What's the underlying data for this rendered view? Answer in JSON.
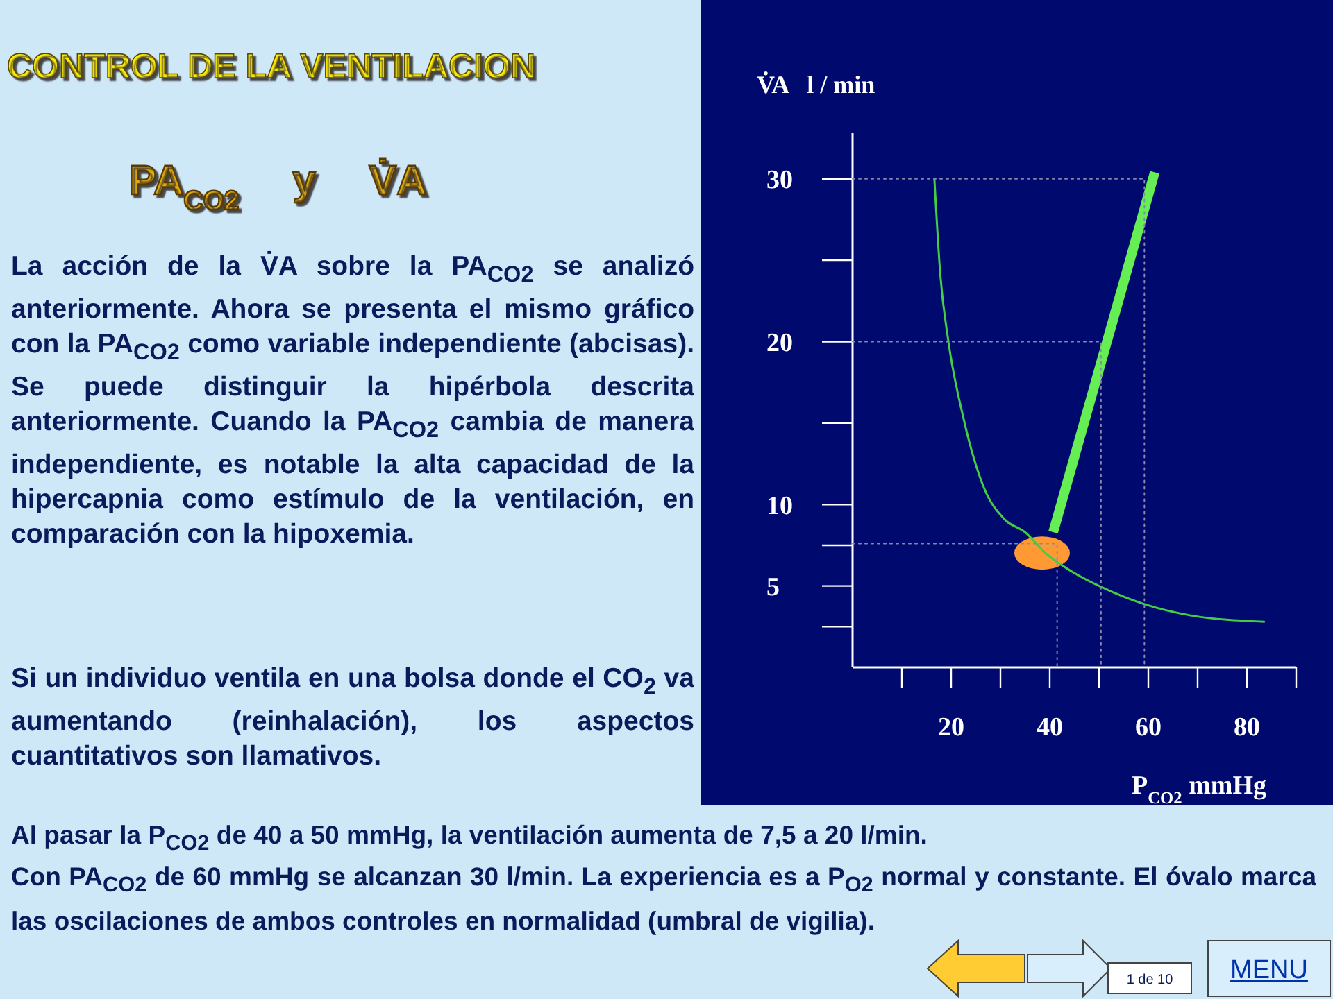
{
  "chart_data": {
    "type": "line",
    "title": "CONTROL DE LA VENTILACION",
    "subtitle": "PA$_{CO2}$ y V̇A",
    "xlabel": "P$_{CO2}$ mmHg",
    "ylabel": "V̇A   l / min",
    "xlim": [
      0,
      90
    ],
    "ylim": [
      0,
      32.8
    ],
    "xticks": [
      20,
      40,
      60,
      80
    ],
    "yticks": [
      5,
      10,
      20,
      30
    ],
    "grid": false,
    "marker": "none",
    "series": [
      {
        "color": "#44cc44",
        "line_style": "solid",
        "x": [
          16.6,
          17.8,
          19.4,
          22.5,
          26.7,
          30.8,
          35,
          39.2,
          44.4,
          50.7,
          59,
          68.4,
          83.5
        ],
        "values": [
          30,
          24.1,
          20.1,
          15.3,
          11,
          9.1,
          8.3,
          7,
          5.9,
          4.9,
          3.9,
          3.2,
          2.8
        ]
      },
      {
        "color": "#66ee55",
        "line_style": "solid",
        "x": [
          40.7,
          61.3
        ],
        "values": [
          8.3,
          30.4
        ]
      },
      {
        "color": "#8888aa",
        "line_style": "dotted",
        "x": [
          0,
          59.2,
          59.2
        ],
        "values": [
          30,
          30,
          0
        ]
      },
      {
        "color": "#8888aa",
        "line_style": "dotted",
        "x": [
          0,
          50.4,
          50.4
        ],
        "values": [
          20,
          20,
          0
        ]
      },
      {
        "color": "#8888aa",
        "line_style": "dotted",
        "x": [
          0,
          41.5,
          41.5
        ],
        "values": [
          7.6,
          7.6,
          0
        ]
      }
    ],
    "annotations": [
      "La acción de la V̇A sobre la PA$_{CO2}$ se analizó anteriormente. Ahora se presenta el mismo gráfico con la PA$_{CO2}$ como variable independiente (abcisas). Se puede distinguir la hipérbola descrita anteriormente. Cuando la PA$_{CO2}$ cambia de manera independiente, es notable la alta capacidad de la hipercapnia como estímulo de la ventilación, en comparación con la hipoxemia.",
      "Si un individuo ventila en una bolsa donde el CO$_{2}$ va aumentando (reinhalación), los aspectos cuantitativos son llamativos.",
      "Al pasar la P$_{CO2}$ de 40 a 50 mmHg, la ventilación aumenta de 7,5 a 20 l/min.",
      "Con PA$_{CO2}$ de 60 mmHg se alcanzan 30 l/min. La experiencia es a P$_{O2}$ normal y constante. El óvalo marca las oscilaciones de ambos controles en normalidad (umbral de vigilia).",
      "1 de 10",
      "MENU"
    ]
  }
}
